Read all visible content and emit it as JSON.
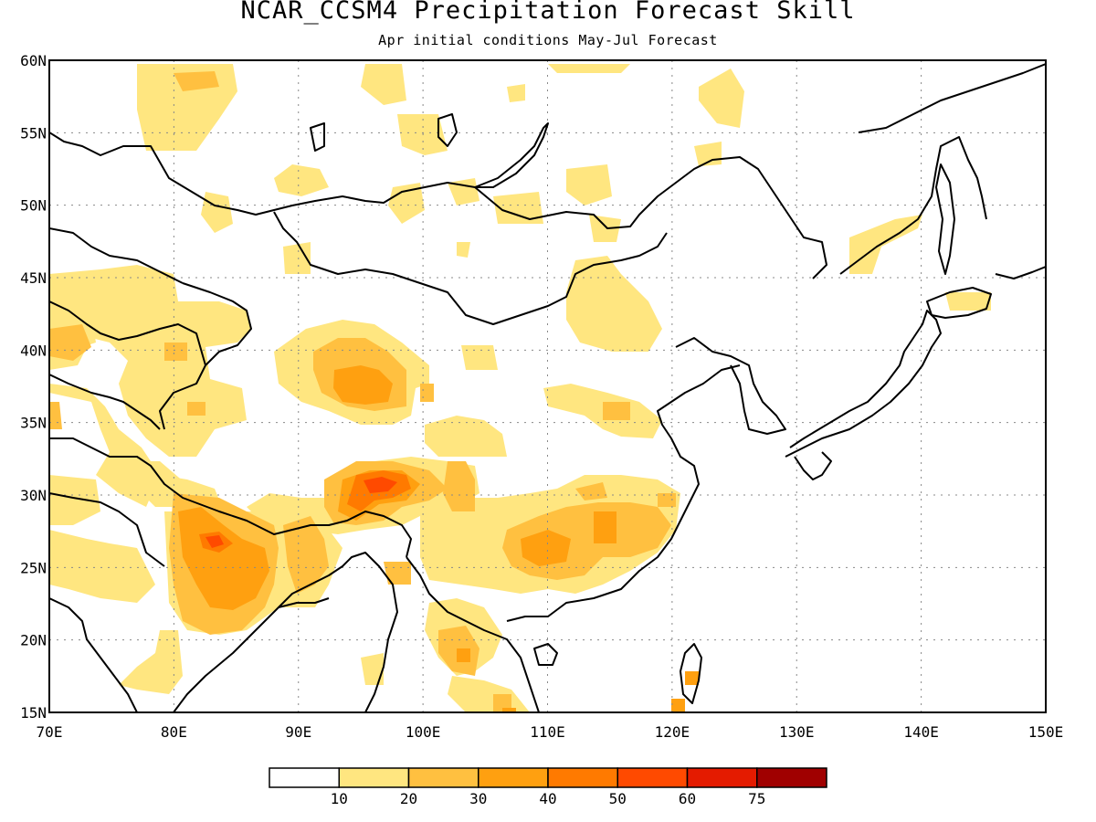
{
  "title": "NCAR_CCSM4 Precipitation Forecast Skill",
  "subtitle": "Apr initial conditions  May-Jul Forecast",
  "map": {
    "lon_range": [
      70,
      150
    ],
    "lat_range": [
      15,
      60
    ],
    "lon_ticks": [
      "70E",
      "80E",
      "90E",
      "100E",
      "110E",
      "120E",
      "130E",
      "140E",
      "150E"
    ],
    "lat_ticks": [
      "60N",
      "55N",
      "50N",
      "45N",
      "40N",
      "35N",
      "30N",
      "25N",
      "20N",
      "15N"
    ],
    "grid": "dotted"
  },
  "colorbar": {
    "labels": [
      "10",
      "20",
      "30",
      "40",
      "50",
      "60",
      "75"
    ],
    "colors": [
      "#ffffff",
      "#ffe680",
      "#ffc040",
      "#ffa010",
      "#ff7a00",
      "#ff4a00",
      "#e41b00",
      "#a00000"
    ]
  }
}
